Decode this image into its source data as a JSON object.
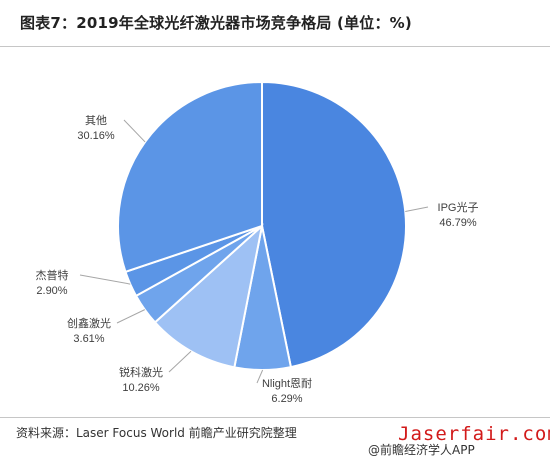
{
  "header": {
    "title": "图表7：2019年全球光纤激光器市场竞争格局 (单位：%)"
  },
  "footer": {
    "source": "资料来源：Laser Focus World 前瞻产业研究院整理",
    "credit": "@前瞻经济学人APP",
    "site": "Jaserfair.com"
  },
  "colors": {
    "ipg": "#4a86e0",
    "nlight": "#6fa4ec",
    "raycus": "#9ec1f4",
    "maxphotonics": "#6fa4ec",
    "jpt": "#5b95e6",
    "others": "#5b95e6",
    "site_text": "#d21a1a"
  },
  "chart_data": {
    "type": "pie",
    "title": "图表7：2019年全球光纤激光器市场竞争格局 (单位：%)",
    "slices": [
      {
        "name": "IPG光子",
        "value": 46.79,
        "value_label": "46.79%"
      },
      {
        "name": "Nlight恩耐",
        "value": 6.29,
        "value_label": "6.29%"
      },
      {
        "name": "锐科激光",
        "value": 10.26,
        "value_label": "10.26%"
      },
      {
        "name": "创鑫激光",
        "value": 3.61,
        "value_label": "3.61%"
      },
      {
        "name": "杰普特",
        "value": 2.9,
        "value_label": "2.90%"
      },
      {
        "name": "其他",
        "value": 30.16,
        "value_label": "30.16%"
      }
    ],
    "start": "12 o'clock",
    "direction": "clockwise",
    "legend": "none"
  }
}
